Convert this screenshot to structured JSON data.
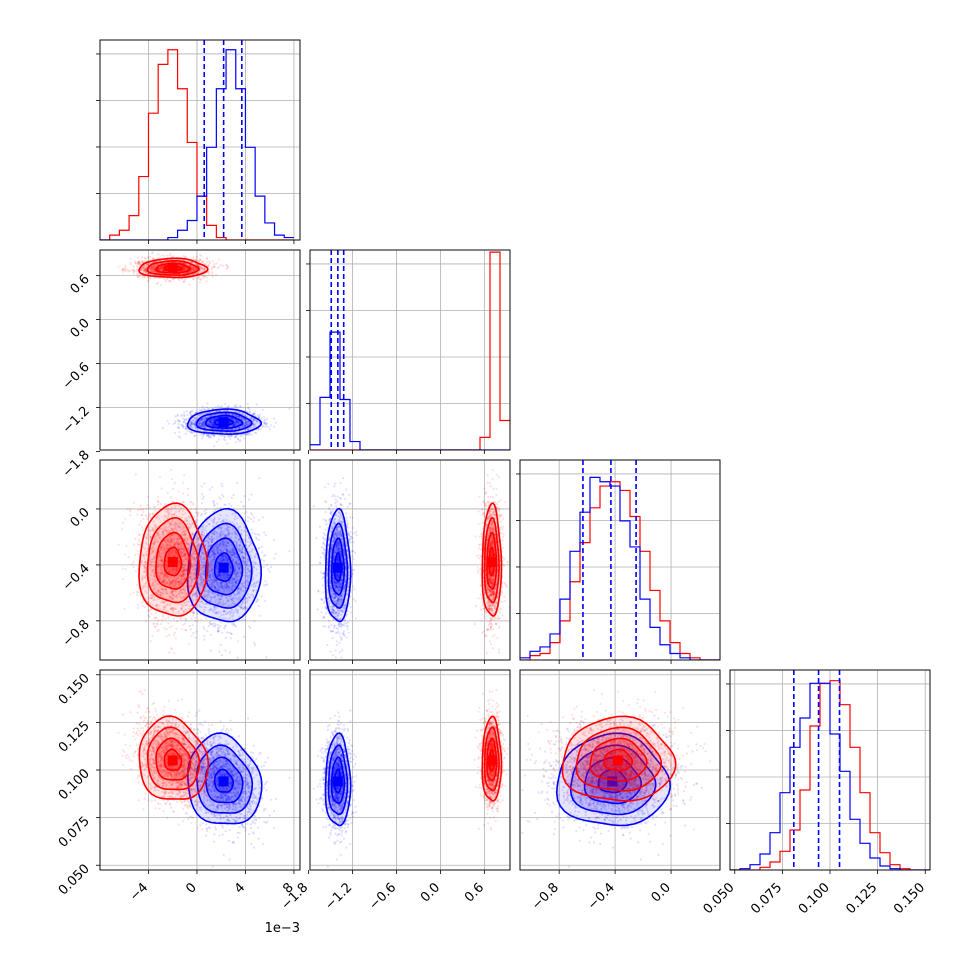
{
  "chart_data": {
    "type": "corner",
    "colors": {
      "blue": "#0000ff",
      "red": "#ff0000",
      "grid": "#b0b0b0"
    },
    "parameters": [
      {
        "range": [
          -0.008,
          0.0085
        ],
        "ticks": [
          -0.004,
          0.0,
          0.004,
          0.008
        ],
        "tick_labels": [
          "−4",
          "0",
          "4",
          "8"
        ],
        "offset_text": "1e−3"
      },
      {
        "range": [
          -1.78,
          0.95
        ],
        "ticks": [
          -1.8,
          -1.2,
          -0.6,
          0.0,
          0.6
        ],
        "tick_labels": [
          "−1.8",
          "−1.2",
          "−0.6",
          "0.0",
          "0.6"
        ]
      },
      {
        "range": [
          -1.08,
          0.35
        ],
        "ticks": [
          -0.8,
          -0.4,
          0.0
        ],
        "tick_labels": [
          "−0.8",
          "−0.4",
          "0.0"
        ]
      },
      {
        "range": [
          0.0475,
          0.1525
        ],
        "ticks": [
          0.05,
          0.075,
          0.1,
          0.125,
          0.15
        ],
        "tick_labels": [
          "0.050",
          "0.075",
          "0.100",
          "0.125",
          "0.150"
        ]
      }
    ],
    "series": [
      {
        "color": "blue",
        "means": [
          0.0022,
          -1.4,
          -0.42,
          0.094
        ],
        "sds": [
          0.0015,
          0.085,
          0.2,
          0.012
        ],
        "quantiles": [
          [
            0.0006,
            0.0022,
            0.0037
          ],
          [
            -1.49,
            -1.4,
            -1.32
          ],
          [
            -0.63,
            -0.43,
            -0.25
          ],
          [
            0.081,
            0.094,
            0.105
          ]
        ]
      },
      {
        "color": "red",
        "means": [
          -0.002,
          0.7,
          -0.38,
          0.105
        ],
        "sds": [
          0.0014,
          0.065,
          0.2,
          0.011
        ],
        "quantiles": []
      }
    ],
    "histograms": [
      {
        "edges": [
          -0.008,
          -0.0072,
          -0.0064,
          -0.0056,
          -0.0048,
          -0.004,
          -0.0032,
          -0.0024,
          -0.0016,
          -0.0008,
          0.0,
          0.0008,
          0.0016,
          0.0024,
          0.0032,
          0.004,
          0.0048,
          0.0056,
          0.0064,
          0.0072,
          0.008
        ],
        "ymax": 82,
        "blue": [
          0,
          0,
          0,
          0,
          0,
          0,
          0,
          1,
          4,
          8,
          18,
          38,
          62,
          78,
          62,
          38,
          18,
          7,
          2,
          1
        ],
        "red": [
          0,
          2,
          4,
          10,
          26,
          52,
          72,
          78,
          62,
          40,
          18,
          6,
          1,
          0,
          0,
          0,
          0,
          0,
          0,
          0
        ]
      },
      {
        "edges": [
          -1.78,
          -1.6435,
          -1.507,
          -1.3705,
          -1.234,
          -1.0975,
          -0.961,
          -0.8245,
          -0.688,
          -0.5515,
          -0.415,
          -0.2785,
          -0.142,
          -0.0055,
          0.131,
          0.2675,
          0.404,
          0.5405,
          0.677,
          0.8135,
          0.95
        ],
        "ymax": 190,
        "blue": [
          5,
          50,
          112,
          48,
          8,
          0,
          0,
          0,
          0,
          0,
          0,
          0,
          0,
          0,
          0,
          0,
          0,
          0,
          0,
          0
        ],
        "red": [
          0,
          0,
          0,
          0,
          0,
          0,
          0,
          0,
          0,
          0,
          0,
          0,
          0,
          0,
          0,
          0,
          0,
          12,
          188,
          28
        ]
      },
      {
        "edges": [
          -1.08,
          -1.0085,
          -0.937,
          -0.8655,
          -0.794,
          -0.7225,
          -0.651,
          -0.5795,
          -0.508,
          -0.4365,
          -0.365,
          -0.2935,
          -0.222,
          -0.1505,
          -0.079,
          -0.0075,
          0.064,
          0.1355,
          0.207,
          0.2785,
          0.35
        ],
        "ymax": 92,
        "blue": [
          1,
          4,
          6,
          12,
          28,
          50,
          68,
          84,
          82,
          80,
          64,
          52,
          28,
          15,
          7,
          3,
          1,
          0,
          0,
          0
        ],
        "red": [
          0,
          2,
          3,
          8,
          18,
          36,
          54,
          70,
          80,
          82,
          78,
          66,
          50,
          32,
          18,
          8,
          3,
          1,
          0,
          0
        ]
      },
      {
        "edges": [
          0.0475,
          0.05275,
          0.058,
          0.06325,
          0.0685,
          0.07375,
          0.079,
          0.08425,
          0.0895,
          0.09475,
          0.1,
          0.10525,
          0.1105,
          0.11575,
          0.121,
          0.12625,
          0.1315,
          0.13675,
          0.142,
          0.14725,
          0.1525
        ],
        "ymax": 150,
        "blue": [
          0,
          1,
          4,
          12,
          28,
          58,
          92,
          114,
          140,
          140,
          102,
          74,
          38,
          20,
          9,
          3,
          1,
          0,
          0,
          0
        ],
        "red": [
          0,
          0,
          0,
          2,
          6,
          14,
          30,
          60,
          108,
          140,
          142,
          124,
          92,
          58,
          28,
          13,
          4,
          1,
          0,
          0
        ]
      }
    ],
    "contour_levels_sigma": [
      0.5,
      1.0,
      1.5,
      2.0
    ],
    "grid": true,
    "x_tick_rotation": 45,
    "y_tick_rotation": 45
  }
}
